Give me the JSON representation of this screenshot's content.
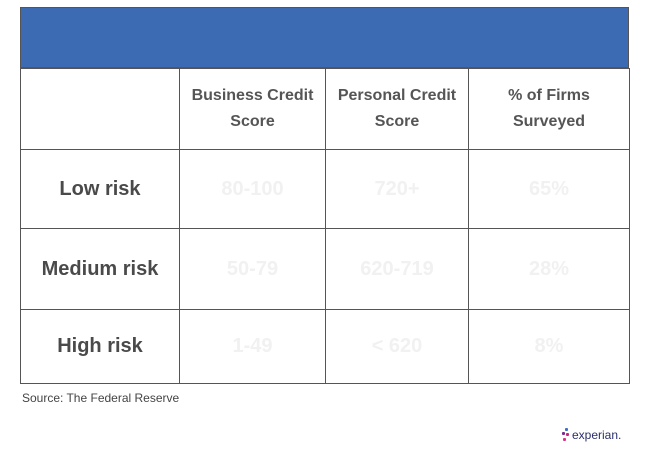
{
  "table": {
    "headers": [
      "",
      "Business Credit Score",
      "Personal Credit Score",
      "% of Firms Surveyed"
    ],
    "rows": [
      {
        "label": "Low risk",
        "business": "80-100",
        "personal": "720+",
        "firms": "65%"
      },
      {
        "label": "Medium risk",
        "business": "50-79",
        "personal": "620-719",
        "firms": "28%"
      },
      {
        "label": "High risk",
        "business": "1-49",
        "personal": "< 620",
        "firms": "8%"
      }
    ]
  },
  "source": "Source: The Federal Reserve",
  "logo": "experian.",
  "colors": {
    "banner": "#3d6bb3"
  }
}
